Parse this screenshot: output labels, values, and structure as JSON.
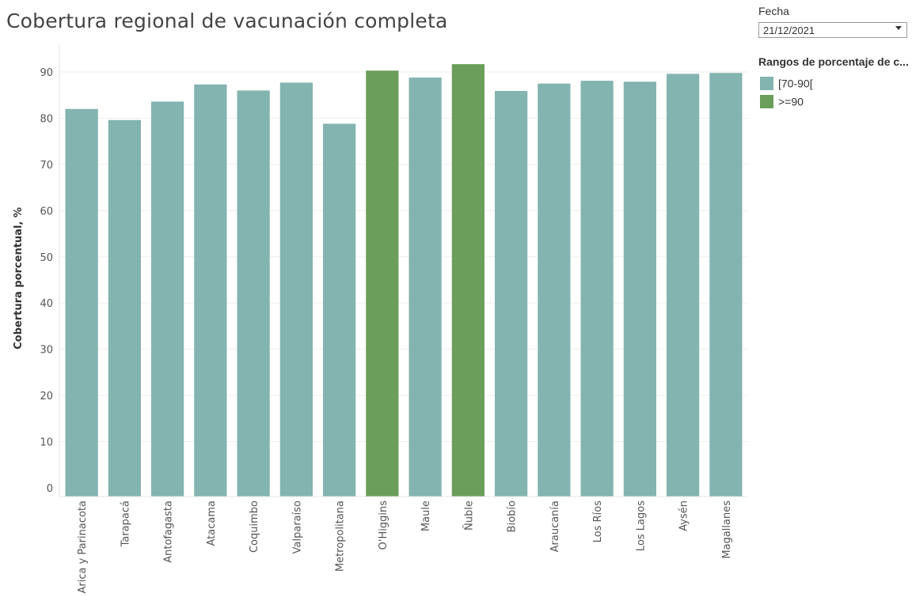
{
  "title": "Cobertura regional de vacunación completa",
  "filter": {
    "label": "Fecha",
    "selected": "21/12/2021"
  },
  "legend": {
    "title": "Rangos de porcentaje de c...",
    "items": [
      {
        "label": "[70-90[",
        "color": "#83b4b0"
      },
      {
        "label": ">=90",
        "color": "#6b9e5a"
      }
    ]
  },
  "chart_data": {
    "type": "bar",
    "categories": [
      "Arica y Parinacota",
      "Tarapacá",
      "Antofagasta",
      "Atacama",
      "Coquimbo",
      "Valparaíso",
      "Metropolitana",
      "O'Higgins",
      "Maule",
      "Ñuble",
      "Biobío",
      "Araucanía",
      "Los Ríos",
      "Los Lagos",
      "Aysén",
      "Magallanes"
    ],
    "values": [
      82.0,
      79.6,
      83.6,
      87.3,
      86.0,
      87.7,
      78.8,
      90.3,
      88.8,
      91.7,
      85.9,
      87.5,
      88.1,
      87.9,
      89.6,
      89.8
    ],
    "ranges": [
      "[70-90[",
      "[70-90[",
      "[70-90[",
      "[70-90[",
      "[70-90[",
      "[70-90[",
      "[70-90[",
      ">=90",
      "[70-90[",
      ">=90",
      "[70-90[",
      "[70-90[",
      "[70-90[",
      "[70-90[",
      "[70-90[",
      "[70-90["
    ],
    "title": "Cobertura regional de vacunación completa",
    "xlabel": "",
    "ylabel": "Cobertura porcentual, %",
    "yticks": [
      0,
      10,
      20,
      30,
      40,
      50,
      60,
      70,
      80,
      90
    ],
    "ylim": [
      -1.9,
      96
    ],
    "grid": true,
    "legend_position": "right"
  }
}
